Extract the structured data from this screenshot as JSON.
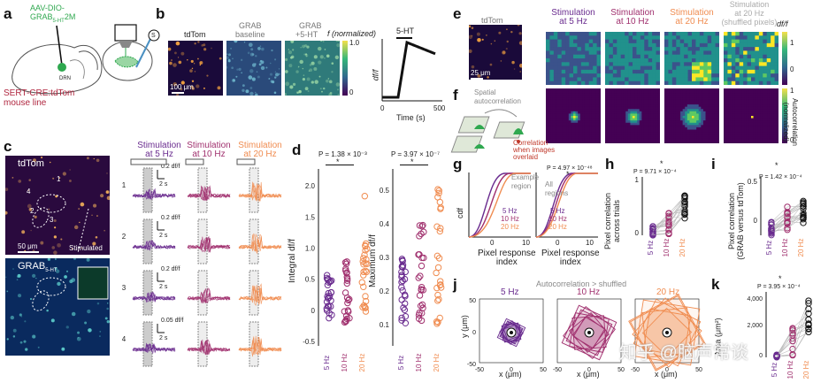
{
  "colors": {
    "purple": "#6a2c8f",
    "magenta": "#a0306e",
    "orange": "#f08c50",
    "green": "#2fa84f",
    "red": "#c0392b",
    "dark": "#1a1a2e"
  },
  "panel_labels": {
    "a": "a",
    "b": "b",
    "c": "c",
    "d": "d",
    "e": "e",
    "f": "f",
    "g": "g",
    "h": "h",
    "i": "i",
    "j": "j",
    "k": "k"
  },
  "a": {
    "construct_line1": "AAV-DIO-",
    "construct_line2": "GRAB",
    "construct_sub": "5-HT",
    "construct_suffix": "2M",
    "drn": "DRN",
    "s_mark": "S",
    "mouse_line1": "SERT-CRE:tdTom",
    "mouse_line2": "mouse line"
  },
  "b": {
    "img1": "tdTom",
    "img2_l1": "GRAB",
    "img2_l2": "baseline",
    "img3_l1": "GRAB",
    "img3_l2": "+5-HT",
    "scale": "100 μm",
    "cbar_label": "f (normalized)",
    "cbar_top": "1.0",
    "cbar_bottom": "0",
    "stim": "5-HT",
    "ylabel": "df/f",
    "xlabel": "Time (s)",
    "x0": "0",
    "x1": "500"
  },
  "c": {
    "tdtom": "tdTom",
    "scale": "50 μm",
    "stimulated": "Stimulated",
    "grab": "GRAB",
    "grab_sub": "5-HT",
    "cols": [
      "Stimulation\nat 5 Hz",
      "Stimulation\nat 10 Hz",
      "Stimulation\nat 20 Hz"
    ],
    "rows": [
      "1",
      "2",
      "3",
      "4"
    ],
    "scalebars": [
      "0.2 df/f",
      "0.2 df/f",
      "0.2 df/f",
      "0.05 df/f"
    ],
    "time": "2 s",
    "roi": [
      "1",
      "2",
      "3",
      "4"
    ]
  },
  "d": {
    "p1": "P = 1.38 × 10⁻³",
    "p2": "P = 3.97 × 10⁻⁷",
    "star": "*",
    "y1label": "Integral df/f",
    "y2label": "Maximum df/f",
    "y1ticks": [
      "2.0",
      "1.5",
      "1.0",
      "0.5",
      "0",
      "-0.5"
    ],
    "y2ticks": [
      "0.5",
      "0.4",
      "0.3",
      "0.2",
      "0.1"
    ],
    "xticks": [
      "5 Hz",
      "10 Hz",
      "20 Hz"
    ]
  },
  "e": {
    "tdtom": "tdTom",
    "scale": "25 μm",
    "titles": [
      "Stimulation\nat 5 Hz",
      "Stimulation\nat 10 Hz",
      "Stimulation\nat 20 Hz",
      "Stimulation\nat 20 Hz\n(shuffled pixels)"
    ],
    "cbar1_label": "df/f",
    "cbar1_ticks": [
      "1",
      "0"
    ],
    "cbar2_label": "Autocorrelation\n(normalized)",
    "cbar2_ticks": [
      "1",
      "0"
    ]
  },
  "f": {
    "label": "Spatial\nautocorrelation",
    "corr": "Correlation\nwhen images\noverlaid"
  },
  "g": {
    "ylabel": "cdf",
    "xlabel": "Pixel response\nindex",
    "xlabel2": "Pixel response\nindex",
    "region1": "Example\nregion",
    "region2": "All\nregions",
    "legend": [
      "5 Hz",
      "10 Hz",
      "20 Hz"
    ],
    "p": "P = 4.97 × 10⁻⁴⁸",
    "star": "*",
    "xticks": [
      "0",
      "10"
    ]
  },
  "h": {
    "ylabel": "Pixel correlation\nacross trials",
    "p": "P = 9.71 × 10⁻⁴",
    "star": "*",
    "yticks": [
      "1",
      "0"
    ],
    "xticks": [
      "5 Hz",
      "10 Hz",
      "20 Hz"
    ]
  },
  "i": {
    "ylabel": "Pixel correlation\n(GRAB versus tdTom)",
    "p": "P = 1.42 × 10⁻⁴",
    "star": "*",
    "yticks": [
      "0.5",
      "0"
    ],
    "xticks": [
      "5 Hz",
      "10 Hz",
      "20 Hz"
    ]
  },
  "j": {
    "header": "Autocorrelation > shuffled",
    "titles": [
      "5 Hz",
      "10 Hz",
      "20 Hz"
    ],
    "ylabel": "y (μm)",
    "xlabel": "x (μm)",
    "ticks": [
      "-50",
      "0",
      "50"
    ],
    "yticks": [
      "50",
      "0",
      "-50"
    ]
  },
  "k": {
    "ylabel": "Area (μm²)",
    "p": "P = 3.95 × 10⁻⁴",
    "star": "*",
    "yticks": [
      "4,000",
      "2,000",
      "0"
    ],
    "xticks": [
      "5 Hz",
      "10 Hz",
      "20 Hz"
    ]
  },
  "watermark": "知乎 @脑声常谈"
}
